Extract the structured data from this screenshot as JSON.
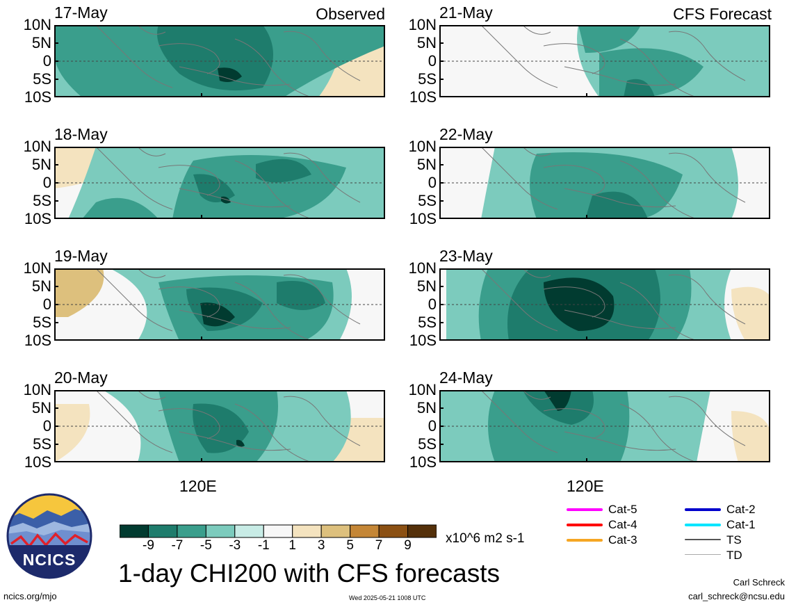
{
  "corner_labels": {
    "left": "Observed",
    "right": "CFS Forecast"
  },
  "y_ticks": [
    "10N",
    "5N",
    "0",
    "5S",
    "10S"
  ],
  "x_tick": "120E",
  "panels": [
    {
      "date": "17-May",
      "column": "Observed"
    },
    {
      "date": "18-May",
      "column": "Observed"
    },
    {
      "date": "19-May",
      "column": "Observed"
    },
    {
      "date": "20-May",
      "column": "Observed"
    },
    {
      "date": "21-May",
      "column": "CFS Forecast"
    },
    {
      "date": "22-May",
      "column": "CFS Forecast"
    },
    {
      "date": "23-May",
      "column": "CFS Forecast"
    },
    {
      "date": "24-May",
      "column": "CFS Forecast"
    }
  ],
  "colorbar": {
    "labels": [
      "-9",
      "-7",
      "-5",
      "-3",
      "-1",
      "1",
      "3",
      "5",
      "7",
      "9"
    ],
    "colors": [
      "#013b30",
      "#1e7c6c",
      "#3a9e8c",
      "#7ccbbd",
      "#c8ece6",
      "#f7f7f7",
      "#f4e3bf",
      "#ddc07d",
      "#c48636",
      "#8b5013",
      "#54300a"
    ],
    "units": "x10^6 m2 s-1"
  },
  "title": "1-day CHI200 with CFS forecasts",
  "logo": {
    "text": "NCICS"
  },
  "footer": {
    "url": "ncics.org/mjo",
    "timestamp": "Wed 2025-05-21 1008 UTC",
    "author": "Carl Schreck",
    "email": "carl_schreck@ncsu.edu"
  },
  "storm_legend": [
    {
      "label": "Cat-5",
      "color": "#ff00ff"
    },
    {
      "label": "Cat-4",
      "color": "#ff0000"
    },
    {
      "label": "Cat-3",
      "color": "#f5a623"
    },
    {
      "label": "Cat-2",
      "color": "#0000cc"
    },
    {
      "label": "Cat-1",
      "color": "#00e5ff"
    },
    {
      "label": "TS",
      "color": "#555555"
    },
    {
      "label": "TD",
      "color": "#aaaaaa"
    }
  ]
}
